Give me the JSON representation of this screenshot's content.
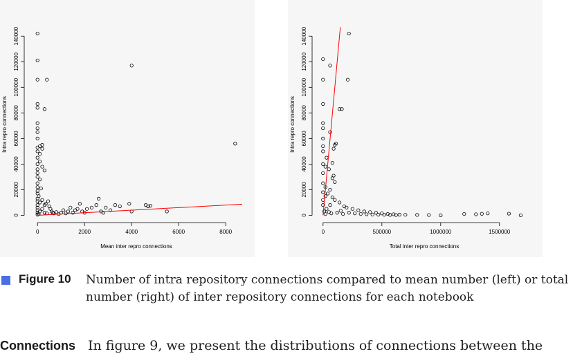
{
  "figure": {
    "label": "Figure 10",
    "caption": "Number of intra repository connections compared to mean number (left) or total number (right) of inter repository connections for each notebook"
  },
  "paragraph": {
    "heading": "Connections",
    "text": "In figure 9, we present the distributions of connections between the"
  },
  "chart_data": [
    {
      "type": "scatter",
      "title": "",
      "xlabel": "Mean inter repro connections",
      "ylabel": "Intra repro connections",
      "xlim": [
        -300,
        8700
      ],
      "ylim": [
        -3000,
        145000
      ],
      "x_ticks": [
        0,
        2000,
        4000,
        6000,
        8000
      ],
      "x_tick_labels": [
        "0",
        "2000",
        "4000",
        "6000",
        "8000"
      ],
      "y_ticks": [
        0,
        20000,
        40000,
        60000,
        80000,
        100000,
        120000,
        140000
      ],
      "y_tick_labels": [
        "0",
        "20000",
        "40000",
        "60000",
        "80000",
        "100000",
        "120000",
        "140000"
      ],
      "grid": false,
      "fit_line": {
        "color": "#ff0000",
        "x": [
          0,
          8700
        ],
        "y": [
          0,
          8700
        ]
      },
      "points": [
        [
          0,
          142000
        ],
        [
          0,
          121000
        ],
        [
          0,
          106000
        ],
        [
          400,
          106000
        ],
        [
          0,
          87000
        ],
        [
          0,
          84000
        ],
        [
          300,
          83000
        ],
        [
          0,
          72000
        ],
        [
          0,
          68000
        ],
        [
          0,
          65000
        ],
        [
          0,
          60000
        ],
        [
          200,
          55000
        ],
        [
          100,
          54000
        ],
        [
          0,
          53000
        ],
        [
          200,
          52000
        ],
        [
          0,
          50000
        ],
        [
          100,
          48000
        ],
        [
          0,
          45000
        ],
        [
          100,
          42000
        ],
        [
          0,
          40000
        ],
        [
          200,
          38000
        ],
        [
          0,
          36000
        ],
        [
          300,
          35000
        ],
        [
          0,
          33000
        ],
        [
          0,
          30000
        ],
        [
          100,
          28000
        ],
        [
          0,
          25000
        ],
        [
          0,
          22000
        ],
        [
          150,
          21000
        ],
        [
          0,
          19000
        ],
        [
          0,
          17000
        ],
        [
          50,
          15000
        ],
        [
          0,
          13000
        ],
        [
          0,
          11000
        ],
        [
          100,
          10000
        ],
        [
          0,
          8000
        ],
        [
          300,
          8000
        ],
        [
          0,
          6000
        ],
        [
          500,
          7000
        ],
        [
          0,
          4000
        ],
        [
          200,
          5000
        ],
        [
          100,
          3000
        ],
        [
          0,
          2000
        ],
        [
          300,
          2000
        ],
        [
          50,
          1000
        ],
        [
          400,
          1500
        ],
        [
          0,
          500
        ],
        [
          600,
          3000
        ],
        [
          700,
          1500
        ],
        [
          800,
          2500
        ],
        [
          900,
          1000
        ],
        [
          1000,
          2000
        ],
        [
          1100,
          4000
        ],
        [
          1200,
          1500
        ],
        [
          1300,
          3000
        ],
        [
          1400,
          6000
        ],
        [
          1500,
          2000
        ],
        [
          1600,
          4000
        ],
        [
          1700,
          5000
        ],
        [
          1800,
          9000
        ],
        [
          1900,
          3000
        ],
        [
          2000,
          2000
        ],
        [
          2100,
          5000
        ],
        [
          2300,
          6000
        ],
        [
          2500,
          8000
        ],
        [
          2600,
          13000
        ],
        [
          2700,
          3000
        ],
        [
          2800,
          2000
        ],
        [
          2900,
          6000
        ],
        [
          3100,
          4000
        ],
        [
          3300,
          8000
        ],
        [
          3500,
          7000
        ],
        [
          3900,
          9000
        ],
        [
          4000,
          117000
        ],
        [
          4000,
          3000
        ],
        [
          4600,
          8000
        ],
        [
          4700,
          7000
        ],
        [
          4800,
          7500
        ],
        [
          5500,
          3000
        ],
        [
          8400,
          56000
        ],
        [
          200,
          12000
        ],
        [
          350,
          9000
        ],
        [
          450,
          11000
        ],
        [
          550,
          5000
        ],
        [
          650,
          2000
        ]
      ]
    },
    {
      "type": "scatter",
      "title": "",
      "xlabel": "Total inter repro connections",
      "ylabel": "Intra repro connections",
      "xlim": [
        -40000,
        1760000
      ],
      "ylim": [
        -3000,
        145000
      ],
      "x_ticks": [
        0,
        500000,
        1000000,
        1500000
      ],
      "x_tick_labels": [
        "0",
        "500000",
        "1000000",
        "1500000"
      ],
      "y_ticks": [
        0,
        20000,
        40000,
        60000,
        80000,
        100000,
        120000,
        140000
      ],
      "y_tick_labels": [
        "0",
        "20000",
        "40000",
        "60000",
        "80000",
        "100000",
        "120000",
        "140000"
      ],
      "grid": false,
      "fit_line": {
        "color": "#ff0000",
        "x": [
          0,
          147000
        ],
        "y": [
          0,
          147000
        ]
      },
      "points": [
        [
          0,
          122000
        ],
        [
          60000,
          117000
        ],
        [
          0,
          106000
        ],
        [
          220000,
          142000
        ],
        [
          210000,
          106000
        ],
        [
          0,
          87000
        ],
        [
          140000,
          83000
        ],
        [
          160000,
          83000
        ],
        [
          0,
          72000
        ],
        [
          0,
          68000
        ],
        [
          60000,
          65000
        ],
        [
          0,
          60000
        ],
        [
          110000,
          56000
        ],
        [
          100000,
          55000
        ],
        [
          0,
          54000
        ],
        [
          90000,
          52000
        ],
        [
          0,
          50000
        ],
        [
          30000,
          45000
        ],
        [
          80000,
          41000
        ],
        [
          0,
          40000
        ],
        [
          20000,
          38000
        ],
        [
          50000,
          36000
        ],
        [
          0,
          33000
        ],
        [
          90000,
          31000
        ],
        [
          80000,
          29000
        ],
        [
          100000,
          26000
        ],
        [
          0,
          25000
        ],
        [
          20000,
          22000
        ],
        [
          60000,
          20000
        ],
        [
          0,
          18000
        ],
        [
          40000,
          17000
        ],
        [
          20000,
          15000
        ],
        [
          80000,
          14000
        ],
        [
          0,
          12000
        ],
        [
          100000,
          12000
        ],
        [
          140000,
          10000
        ],
        [
          0,
          8000
        ],
        [
          60000,
          8000
        ],
        [
          180000,
          7000
        ],
        [
          200000,
          6000
        ],
        [
          30000,
          5000
        ],
        [
          250000,
          5000
        ],
        [
          300000,
          4000
        ],
        [
          350000,
          3000
        ],
        [
          400000,
          2500
        ],
        [
          450000,
          2000
        ],
        [
          500000,
          1500
        ],
        [
          550000,
          1000
        ],
        [
          600000,
          800
        ],
        [
          650000,
          500
        ],
        [
          700000,
          400
        ],
        [
          800000,
          300
        ],
        [
          900000,
          200
        ],
        [
          1000000,
          0
        ],
        [
          1200000,
          1000
        ],
        [
          1300000,
          800
        ],
        [
          1350000,
          1200
        ],
        [
          1400000,
          1500
        ],
        [
          1580000,
          1300
        ],
        [
          1680000,
          0
        ],
        [
          10000,
          3000
        ],
        [
          20000,
          1000
        ],
        [
          50000,
          2500
        ],
        [
          70000,
          1500
        ],
        [
          120000,
          2000
        ],
        [
          150000,
          3500
        ],
        [
          170000,
          1000
        ],
        [
          220000,
          2000
        ],
        [
          270000,
          1500
        ],
        [
          320000,
          1000
        ],
        [
          370000,
          800
        ],
        [
          420000,
          600
        ],
        [
          470000,
          500
        ],
        [
          520000,
          400
        ],
        [
          570000,
          300
        ],
        [
          620000,
          200
        ]
      ]
    }
  ]
}
